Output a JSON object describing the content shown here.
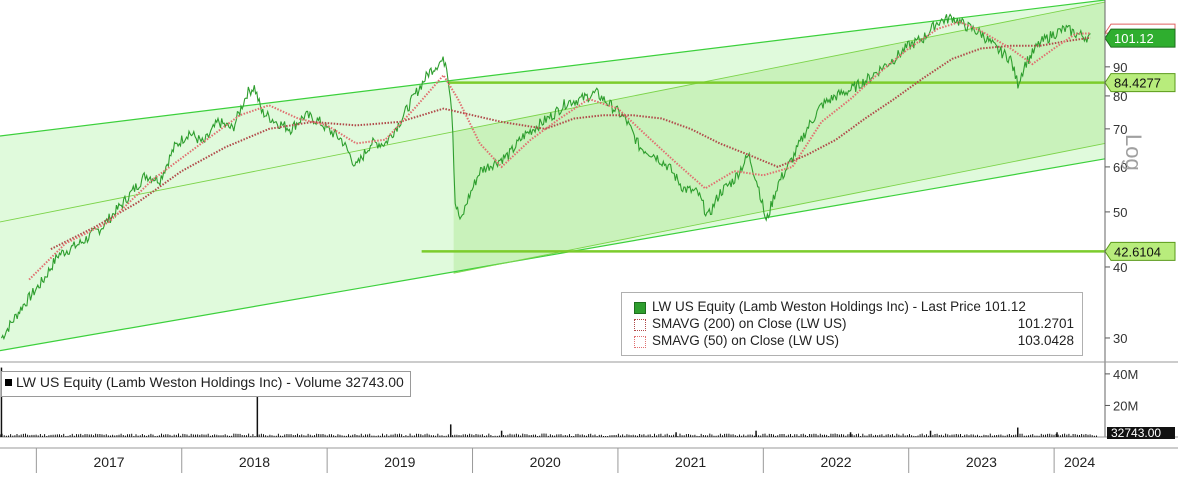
{
  "chart_data": [
    {
      "type": "line",
      "scale": "log",
      "axis_label": "Log",
      "ylim": [
        28,
        118
      ],
      "y_ticks": [
        30,
        40,
        50,
        60,
        70,
        80,
        90
      ],
      "x_labels": [
        "2017",
        "2018",
        "2019",
        "2020",
        "2021",
        "2022",
        "2023",
        "2024"
      ],
      "xlim": [
        2016.75,
        2024.35
      ],
      "series": [
        {
          "name": "LW US Equity (Lamb Weston Holdings Inc) - Last Price",
          "last_value": "101.12",
          "color": "#2e9e2e",
          "points": [
            [
              2016.76,
              30
            ],
            [
              2016.9,
              34
            ],
            [
              2017.05,
              38
            ],
            [
              2017.15,
              42
            ],
            [
              2017.3,
              44
            ],
            [
              2017.45,
              47
            ],
            [
              2017.6,
              52
            ],
            [
              2017.75,
              58
            ],
            [
              2017.85,
              57
            ],
            [
              2017.95,
              65
            ],
            [
              2018.05,
              69
            ],
            [
              2018.15,
              66
            ],
            [
              2018.25,
              72
            ],
            [
              2018.35,
              70
            ],
            [
              2018.45,
              81
            ],
            [
              2018.5,
              83
            ],
            [
              2018.55,
              75
            ],
            [
              2018.65,
              72
            ],
            [
              2018.75,
              70
            ],
            [
              2018.85,
              74
            ],
            [
              2018.95,
              72
            ],
            [
              2019.0,
              70
            ],
            [
              2019.1,
              67
            ],
            [
              2019.2,
              60
            ],
            [
              2019.3,
              66
            ],
            [
              2019.4,
              66
            ],
            [
              2019.5,
              72
            ],
            [
              2019.6,
              80
            ],
            [
              2019.7,
              88
            ],
            [
              2019.78,
              92
            ],
            [
              2019.82,
              92
            ],
            [
              2019.86,
              75
            ],
            [
              2019.88,
              52
            ],
            [
              2019.92,
              48
            ],
            [
              2019.96,
              52
            ],
            [
              2020.05,
              59
            ],
            [
              2020.15,
              61
            ],
            [
              2020.25,
              63
            ],
            [
              2020.35,
              68
            ],
            [
              2020.45,
              71
            ],
            [
              2020.55,
              74
            ],
            [
              2020.65,
              78
            ],
            [
              2020.75,
              79
            ],
            [
              2020.85,
              81
            ],
            [
              2020.95,
              77
            ],
            [
              2021.05,
              73
            ],
            [
              2021.15,
              65
            ],
            [
              2021.25,
              63
            ],
            [
              2021.35,
              60
            ],
            [
              2021.45,
              55
            ],
            [
              2021.55,
              54
            ],
            [
              2021.62,
              49
            ],
            [
              2021.7,
              54
            ],
            [
              2021.8,
              57
            ],
            [
              2021.9,
              63
            ],
            [
              2021.97,
              55
            ],
            [
              2022.02,
              48
            ],
            [
              2022.1,
              56
            ],
            [
              2022.2,
              62
            ],
            [
              2022.3,
              70
            ],
            [
              2022.4,
              77
            ],
            [
              2022.5,
              80
            ],
            [
              2022.6,
              82
            ],
            [
              2022.7,
              85
            ],
            [
              2022.8,
              89
            ],
            [
              2022.9,
              93
            ],
            [
              2023.0,
              98
            ],
            [
              2023.1,
              101
            ],
            [
              2023.2,
              108
            ],
            [
              2023.3,
              110
            ],
            [
              2023.4,
              106
            ],
            [
              2023.5,
              103
            ],
            [
              2023.6,
              97
            ],
            [
              2023.65,
              95
            ],
            [
              2023.7,
              93
            ],
            [
              2023.75,
              84
            ],
            [
              2023.8,
              91
            ],
            [
              2023.9,
              99
            ],
            [
              2024.0,
              103
            ],
            [
              2024.08,
              105
            ],
            [
              2024.15,
              103
            ],
            [
              2024.25,
              101.12
            ]
          ]
        },
        {
          "name": "SMAVG (200) on Close (LW US)",
          "value": "101.2701",
          "color": "#b04a4a",
          "points": [
            [
              2017.1,
              43
            ],
            [
              2017.4,
              47
            ],
            [
              2017.7,
              52
            ],
            [
              2018.0,
              59
            ],
            [
              2018.3,
              65
            ],
            [
              2018.6,
              70
            ],
            [
              2018.9,
              72
            ],
            [
              2019.2,
              71
            ],
            [
              2019.5,
              72
            ],
            [
              2019.8,
              76
            ],
            [
              2020.0,
              74
            ],
            [
              2020.2,
              72
            ],
            [
              2020.5,
              70
            ],
            [
              2020.7,
              73
            ],
            [
              2020.9,
              74
            ],
            [
              2021.1,
              74
            ],
            [
              2021.3,
              73
            ],
            [
              2021.5,
              70
            ],
            [
              2021.7,
              66
            ],
            [
              2021.9,
              63
            ],
            [
              2022.1,
              60
            ],
            [
              2022.3,
              63
            ],
            [
              2022.5,
              67
            ],
            [
              2022.7,
              73
            ],
            [
              2022.9,
              79
            ],
            [
              2023.1,
              86
            ],
            [
              2023.3,
              93
            ],
            [
              2023.5,
              97
            ],
            [
              2023.7,
              98
            ],
            [
              2023.9,
              98
            ],
            [
              2024.1,
              100
            ],
            [
              2024.25,
              101.2701
            ]
          ]
        },
        {
          "name": "SMAVG (50) on Close (LW US)",
          "value": "103.0428",
          "color": "#e07070",
          "points": [
            [
              2016.95,
              38
            ],
            [
              2017.2,
              44
            ],
            [
              2017.5,
              48
            ],
            [
              2017.8,
              57
            ],
            [
              2018.1,
              65
            ],
            [
              2018.4,
              74
            ],
            [
              2018.6,
              77
            ],
            [
              2018.8,
              73
            ],
            [
              2019.0,
              71
            ],
            [
              2019.2,
              66
            ],
            [
              2019.4,
              67
            ],
            [
              2019.6,
              76
            ],
            [
              2019.8,
              87
            ],
            [
              2019.9,
              79
            ],
            [
              2020.05,
              66
            ],
            [
              2020.2,
              60
            ],
            [
              2020.4,
              67
            ],
            [
              2020.6,
              73
            ],
            [
              2020.8,
              79
            ],
            [
              2021.0,
              76
            ],
            [
              2021.2,
              68
            ],
            [
              2021.4,
              61
            ],
            [
              2021.6,
              55
            ],
            [
              2021.8,
              59
            ],
            [
              2022.0,
              58
            ],
            [
              2022.2,
              60
            ],
            [
              2022.4,
              72
            ],
            [
              2022.6,
              79
            ],
            [
              2022.8,
              88
            ],
            [
              2023.0,
              97
            ],
            [
              2023.2,
              105
            ],
            [
              2023.35,
              108
            ],
            [
              2023.5,
              104
            ],
            [
              2023.7,
              97
            ],
            [
              2023.85,
              91
            ],
            [
              2024.0,
              97
            ],
            [
              2024.15,
              103
            ],
            [
              2024.25,
              103.0428
            ]
          ]
        }
      ],
      "channels": [
        {
          "name": "outer-channel",
          "color": "#3cd03c",
          "lines": [
            [
              [
                2016.75,
                68
              ],
              [
                2024.35,
                118
              ]
            ],
            [
              [
                2016.75,
                28.5
              ],
              [
                2024.35,
                62
              ]
            ]
          ]
        },
        {
          "name": "inner-channel",
          "color": "#7cd44a",
          "lines": [
            [
              [
                2016.75,
                48
              ],
              [
                2024.35,
                117
              ]
            ],
            [
              [
                2019.87,
                39
              ],
              [
                2024.35,
                66
              ]
            ]
          ]
        }
      ],
      "levels": [
        {
          "value": "84.4277",
          "start_x": 2019.83,
          "color": "#7ccc2c"
        },
        {
          "value": "42.6104",
          "start_x": 2019.65,
          "color": "#7ccc2c"
        }
      ],
      "price_tag": {
        "value": "101.12",
        "color": "#2e9e2e"
      }
    },
    {
      "type": "bar",
      "title": "LW US Equity (Lamb Weston Holdings Inc) - Volume 32743.00",
      "last_value": "32743.00",
      "y_ticks": [
        "40M",
        "20M"
      ],
      "ylim": [
        0,
        45
      ],
      "unit": "M",
      "spikes": [
        [
          2016.76,
          44
        ],
        [
          2018.52,
          36
        ],
        [
          2019.85,
          8
        ],
        [
          2020.2,
          4
        ],
        [
          2021.4,
          3
        ],
        [
          2021.95,
          4
        ],
        [
          2022.6,
          3
        ],
        [
          2023.15,
          4
        ],
        [
          2023.75,
          6
        ],
        [
          2024.02,
          3
        ]
      ]
    }
  ],
  "legend": {
    "rows": [
      {
        "label": "LW US Equity (Lamb Weston Holdings Inc)  - Last Price 101.12",
        "value": ""
      },
      {
        "label": "SMAVG (200)  on Close (LW US)",
        "value": "101.2701"
      },
      {
        "label": "SMAVG (50)  on Close (LW US)",
        "value": "103.0428"
      }
    ]
  }
}
